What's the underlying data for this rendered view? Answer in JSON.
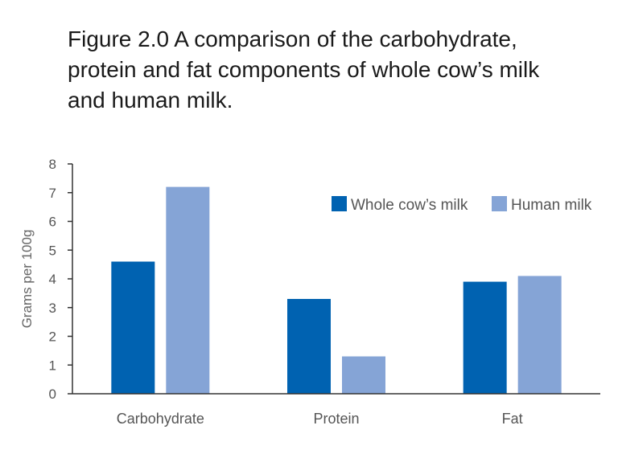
{
  "title_lines": [
    "Figure 2.0 A comparison of the carbohydrate,",
    "protein and fat components of whole cow’s milk",
    "and human milk."
  ],
  "chart_data": {
    "type": "bar",
    "title": "Figure 2.0 A comparison of the carbohydrate, protein and fat components of whole cow’s milk and human milk.",
    "xlabel": "",
    "ylabel": "Grams per 100g",
    "categories": [
      "Carbohydrate",
      "Protein",
      "Fat"
    ],
    "series": [
      {
        "name": "Whole cow’s milk",
        "color": "#0062b1",
        "values": [
          4.6,
          3.3,
          3.9
        ]
      },
      {
        "name": "Human milk",
        "color": "#85a4d6",
        "values": [
          7.2,
          1.3,
          4.1
        ]
      }
    ],
    "ylim": [
      0,
      8
    ],
    "yticks": [
      0,
      1,
      2,
      3,
      4,
      5,
      6,
      7,
      8
    ],
    "grid": false,
    "legend": "top-right"
  }
}
